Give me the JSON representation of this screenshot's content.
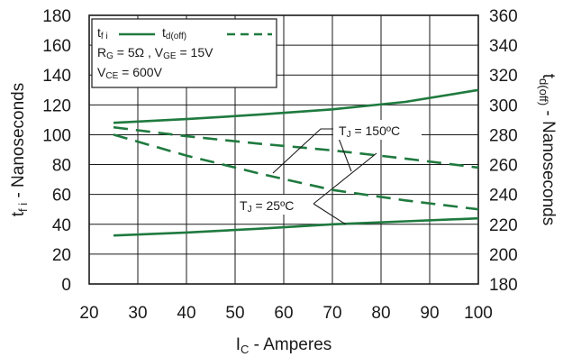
{
  "chart_data": {
    "type": "line",
    "xlabel": {
      "main": "I",
      "sub": "C",
      "rest": " - Amperes"
    },
    "ylabel_left": {
      "main": "t",
      "sub": "f i",
      "rest": " - Nanoseconds"
    },
    "ylabel_right": {
      "main": "t",
      "sub": "d(off)",
      "rest": " - Nanoseconds"
    },
    "xlim": [
      20,
      100
    ],
    "ylim_left": [
      0,
      180
    ],
    "ylim_right": [
      180,
      360
    ],
    "x_ticks": [
      "20",
      "30",
      "40",
      "50",
      "60",
      "70",
      "80",
      "90",
      "100"
    ],
    "y_ticks_left": [
      "0",
      "20",
      "40",
      "60",
      "80",
      "100",
      "120",
      "140",
      "160",
      "180"
    ],
    "y_ticks_right": [
      "180",
      "200",
      "220",
      "240",
      "260",
      "280",
      "300",
      "320",
      "340",
      "360"
    ],
    "grid": true,
    "color": "#1f7a3f",
    "legend": {
      "position": "top-left",
      "entries": [
        {
          "main": "t",
          "sub": "f i",
          "style": "solid"
        },
        {
          "main": "t",
          "sub": "d(off)",
          "style": "dashed"
        }
      ],
      "conditions": [
        [
          {
            "main": "R",
            "sub": "G",
            "rest": " = 5Ω ,  "
          },
          {
            "main": "V",
            "sub": "GE",
            "rest": " = 15V"
          }
        ],
        [
          {
            "main": "V",
            "sub": "CE",
            "rest": " = 600V"
          }
        ]
      ]
    },
    "series": [
      {
        "name": "t f i",
        "axis": "left",
        "style": "solid",
        "condition": "T_J = 150°C",
        "x": [
          25,
          40,
          55,
          70,
          85,
          100
        ],
        "y": [
          108,
          110.5,
          113.5,
          117,
          122,
          130
        ]
      },
      {
        "name": "t f i",
        "axis": "left",
        "style": "solid",
        "condition": "T_J = 25°C",
        "x": [
          25,
          40,
          55,
          70,
          85,
          100
        ],
        "y": [
          32.5,
          34.5,
          37,
          40,
          42,
          44
        ]
      },
      {
        "name": "t d(off)",
        "axis": "right",
        "style": "dashed",
        "condition": "T_J = 150°C",
        "x": [
          25,
          40,
          55,
          70,
          85,
          100
        ],
        "y": [
          285,
          279,
          274,
          269.5,
          264,
          258
        ]
      },
      {
        "name": "t d(off)",
        "axis": "right",
        "style": "dashed",
        "condition": "T_J = 25°C",
        "x": [
          25,
          40,
          55,
          70,
          85,
          100
        ],
        "y": [
          280,
          266,
          254,
          243,
          236,
          230
        ]
      }
    ],
    "annotations": [
      {
        "main": "T",
        "sub": "J",
        "rest": " = 150ºC"
      },
      {
        "main": "T",
        "sub": "J",
        "rest": " = 25ºC"
      }
    ]
  }
}
